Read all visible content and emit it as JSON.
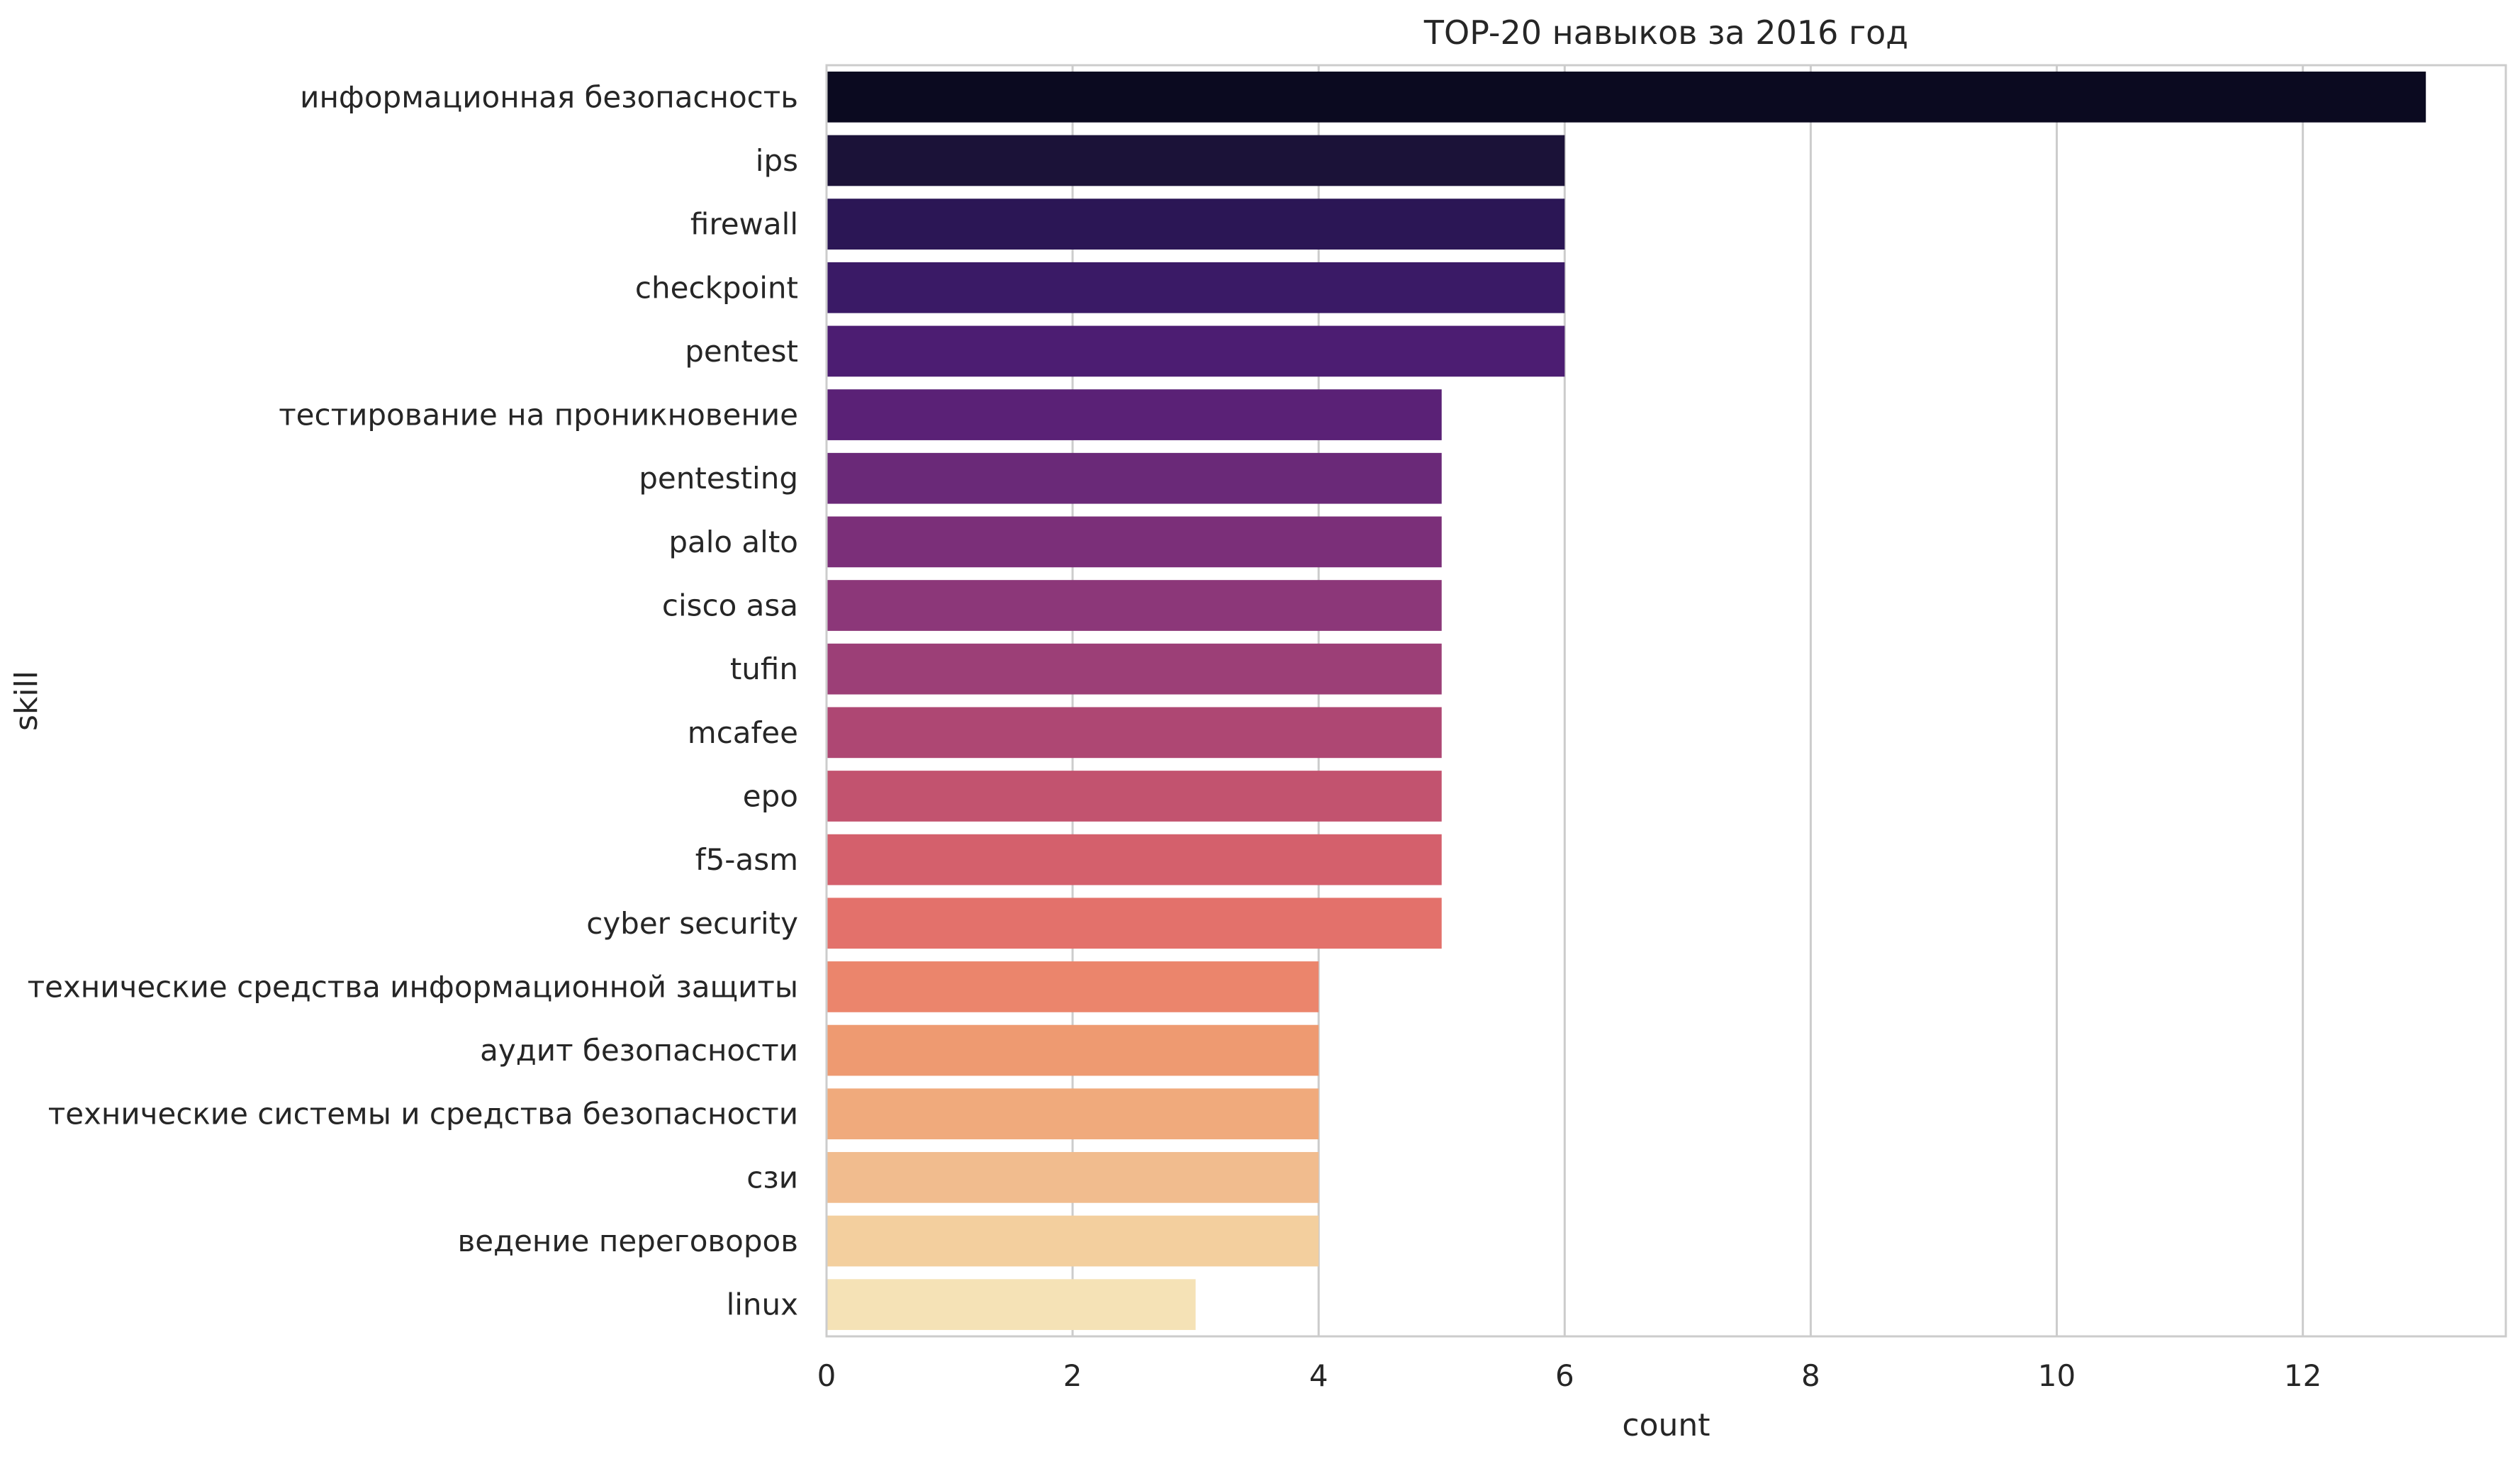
{
  "chart_data": {
    "type": "bar",
    "orientation": "horizontal",
    "title": "TOP-20 навыков за 2016 год",
    "xlabel": "count",
    "ylabel": "skill",
    "xlim": [
      0,
      13.65
    ],
    "xticks": [
      0,
      2,
      4,
      6,
      8,
      10,
      12
    ],
    "grid": true,
    "categories": [
      "информационная безопасность",
      "ips",
      "firewall",
      "checkpoint",
      "pentest",
      "тестирование на проникновение",
      "pentesting",
      "palo alto",
      "cisco asa",
      "tufin",
      "mcafee",
      "epo",
      "f5-asm",
      "cyber security",
      "технические средства информационной защиты",
      "аудит безопасности",
      "технические системы и средства безопасности",
      "сзи",
      "ведение переговоров",
      "linux"
    ],
    "values": [
      13,
      6,
      6,
      6,
      6,
      5,
      5,
      5,
      5,
      5,
      5,
      5,
      5,
      5,
      4,
      4,
      4,
      4,
      4,
      3
    ],
    "colors": [
      "#0b0a20",
      "#1b1238",
      "#2b1655",
      "#3a1a66",
      "#4c1d72",
      "#5a2176",
      "#6a2978",
      "#7b2f79",
      "#8c3779",
      "#9c3f77",
      "#ae4773",
      "#c2536f",
      "#d4606c",
      "#e3716b",
      "#eb856c",
      "#ee9a71",
      "#f0aa7c",
      "#f1bc8e",
      "#f3cf9e",
      "#f5e2b6"
    ]
  }
}
